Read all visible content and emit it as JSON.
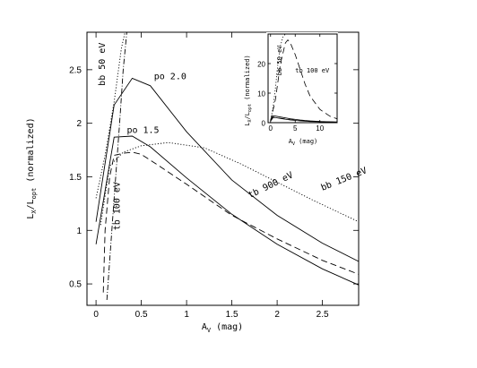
{
  "chart_data": [
    {
      "type": "line",
      "xlabel": "A",
      "xlabel_sub": "V",
      "xlabel_unit": " (mag)",
      "ylabel": "L",
      "ylabel_sub1": "X",
      "ylabel_mid": "/L",
      "ylabel_sub2": "opt",
      "ylabel_tail": " (normalized)",
      "xlim": [
        -0.1,
        2.9
      ],
      "ylim": [
        0.3,
        2.85
      ],
      "xticks": [
        "0",
        "0.5",
        "1",
        "1.5",
        "2",
        "2.5"
      ],
      "xtick_values": [
        0,
        0.5,
        1,
        1.5,
        2,
        2.5
      ],
      "yticks": [
        "0.5",
        "1",
        "1.5",
        "2",
        "2.5"
      ],
      "ytick_values": [
        0.5,
        1,
        1.5,
        2,
        2.5
      ],
      "series": [
        {
          "name": "po 2.0",
          "style": "solid",
          "x": [
            0,
            0.2,
            0.4,
            0.6,
            1.0,
            1.5,
            2.0,
            2.5,
            2.9
          ],
          "y": [
            1.08,
            2.17,
            2.42,
            2.35,
            1.92,
            1.47,
            1.14,
            0.88,
            0.71
          ]
        },
        {
          "name": "po 1.5",
          "style": "solid",
          "x": [
            0,
            0.2,
            0.4,
            0.6,
            1.0,
            1.5,
            2.0,
            2.5,
            2.9
          ],
          "y": [
            0.87,
            1.87,
            1.88,
            1.78,
            1.49,
            1.15,
            0.87,
            0.64,
            0.49
          ]
        },
        {
          "name": "tb 900 eV",
          "style": "dashed",
          "x": [
            0.08,
            0.1,
            0.15,
            0.2,
            0.3,
            0.4,
            0.5,
            0.7,
            1.0,
            1.5,
            2.0,
            2.5,
            2.9
          ],
          "y": [
            0.42,
            1.0,
            1.5,
            1.7,
            1.72,
            1.73,
            1.71,
            1.6,
            1.43,
            1.14,
            0.92,
            0.72,
            0.59
          ]
        },
        {
          "name": "bb 150 eV",
          "style": "dotted",
          "x": [
            0.05,
            0.15,
            0.3,
            0.5,
            0.8,
            1.2,
            1.6,
            2.0,
            2.4,
            2.9
          ],
          "y": [
            1.05,
            1.6,
            1.73,
            1.79,
            1.82,
            1.77,
            1.62,
            1.45,
            1.28,
            1.08
          ]
        },
        {
          "name": "bb 50 eV",
          "style": "dotted",
          "x": [
            0.0,
            0.1,
            0.2,
            0.28,
            0.32
          ],
          "y": [
            1.3,
            1.7,
            2.2,
            2.7,
            2.85
          ]
        },
        {
          "name": "tb 100 eV",
          "style": "dashdot",
          "x": [
            0.12,
            0.2,
            0.26,
            0.3,
            0.34
          ],
          "y": [
            0.35,
            1.3,
            2.0,
            2.5,
            2.85
          ]
        }
      ],
      "annotations": [
        {
          "text": "po 2.0",
          "x": 0.64,
          "y": 2.41,
          "rotate": 0
        },
        {
          "text": "po 1.5",
          "x": 0.34,
          "y": 1.91,
          "rotate": 0
        },
        {
          "text": "bb 50 eV",
          "x": 0.1,
          "y": 2.35,
          "rotate": -90
        },
        {
          "text": "tb 100 eV",
          "x": 0.26,
          "y": 1.0,
          "rotate": -90
        },
        {
          "text": "tb 900 eV",
          "x": 1.7,
          "y": 1.3,
          "rotate": -26
        },
        {
          "text": "bb 150 eV",
          "x": 2.5,
          "y": 1.37,
          "rotate": -22
        }
      ]
    },
    {
      "type": "line",
      "inset": true,
      "xlabel": "A",
      "xlabel_sub": "V",
      "xlabel_unit": " (mag)",
      "ylabel": "L",
      "ylabel_sub1": "X",
      "ylabel_mid": "/L",
      "ylabel_sub2": "opt",
      "ylabel_tail": " (normalized)",
      "xlim": [
        -0.5,
        13.5
      ],
      "ylim": [
        0,
        30
      ],
      "xticks": [
        "0",
        "5",
        "10"
      ],
      "xtick_values": [
        0,
        5,
        10
      ],
      "yticks": [
        "0",
        "10",
        "20"
      ],
      "ytick_values": [
        0,
        10,
        20
      ],
      "series": [
        {
          "name": "bb 50 eV",
          "style": "dotted",
          "x": [
            0,
            0.5,
            1,
            1.5,
            2,
            2.5,
            3
          ],
          "y": [
            1,
            5,
            12,
            20,
            26,
            29,
            30
          ]
        },
        {
          "name": "tb 100 eV",
          "style": "dashed",
          "x": [
            0,
            1,
            2,
            3,
            3.5,
            4,
            5,
            6,
            7,
            8,
            10,
            12,
            13.5
          ],
          "y": [
            0.5,
            8,
            20,
            27,
            28,
            27,
            23,
            18,
            13,
            9,
            4.5,
            2.2,
            1.3
          ]
        },
        {
          "name": "po",
          "style": "solid",
          "x": [
            0,
            0.5,
            1,
            2,
            4,
            6,
            8,
            10,
            12,
            13.5
          ],
          "y": [
            1.1,
            2.3,
            2.2,
            1.9,
            1.3,
            0.9,
            0.6,
            0.4,
            0.3,
            0.25
          ]
        },
        {
          "name": "po",
          "style": "solid",
          "x": [
            0,
            0.5,
            1,
            2,
            4,
            6,
            8,
            10,
            12,
            13.5
          ],
          "y": [
            0.9,
            1.9,
            1.7,
            1.4,
            0.9,
            0.6,
            0.4,
            0.3,
            0.2,
            0.15
          ]
        },
        {
          "name": "tb",
          "style": "dashed",
          "x": [
            0,
            0.5,
            1,
            2,
            4,
            6,
            8,
            10,
            12,
            13.5
          ],
          "y": [
            0.5,
            1.7,
            1.7,
            1.5,
            1.0,
            0.7,
            0.5,
            0.35,
            0.25,
            0.2
          ]
        }
      ],
      "annotations": [
        {
          "text": "bb 50 eV",
          "x": 2.2,
          "y": 16,
          "rotate": -90
        },
        {
          "text": "tb 100 eV",
          "x": 5.0,
          "y": 17,
          "rotate": 0
        }
      ]
    }
  ]
}
